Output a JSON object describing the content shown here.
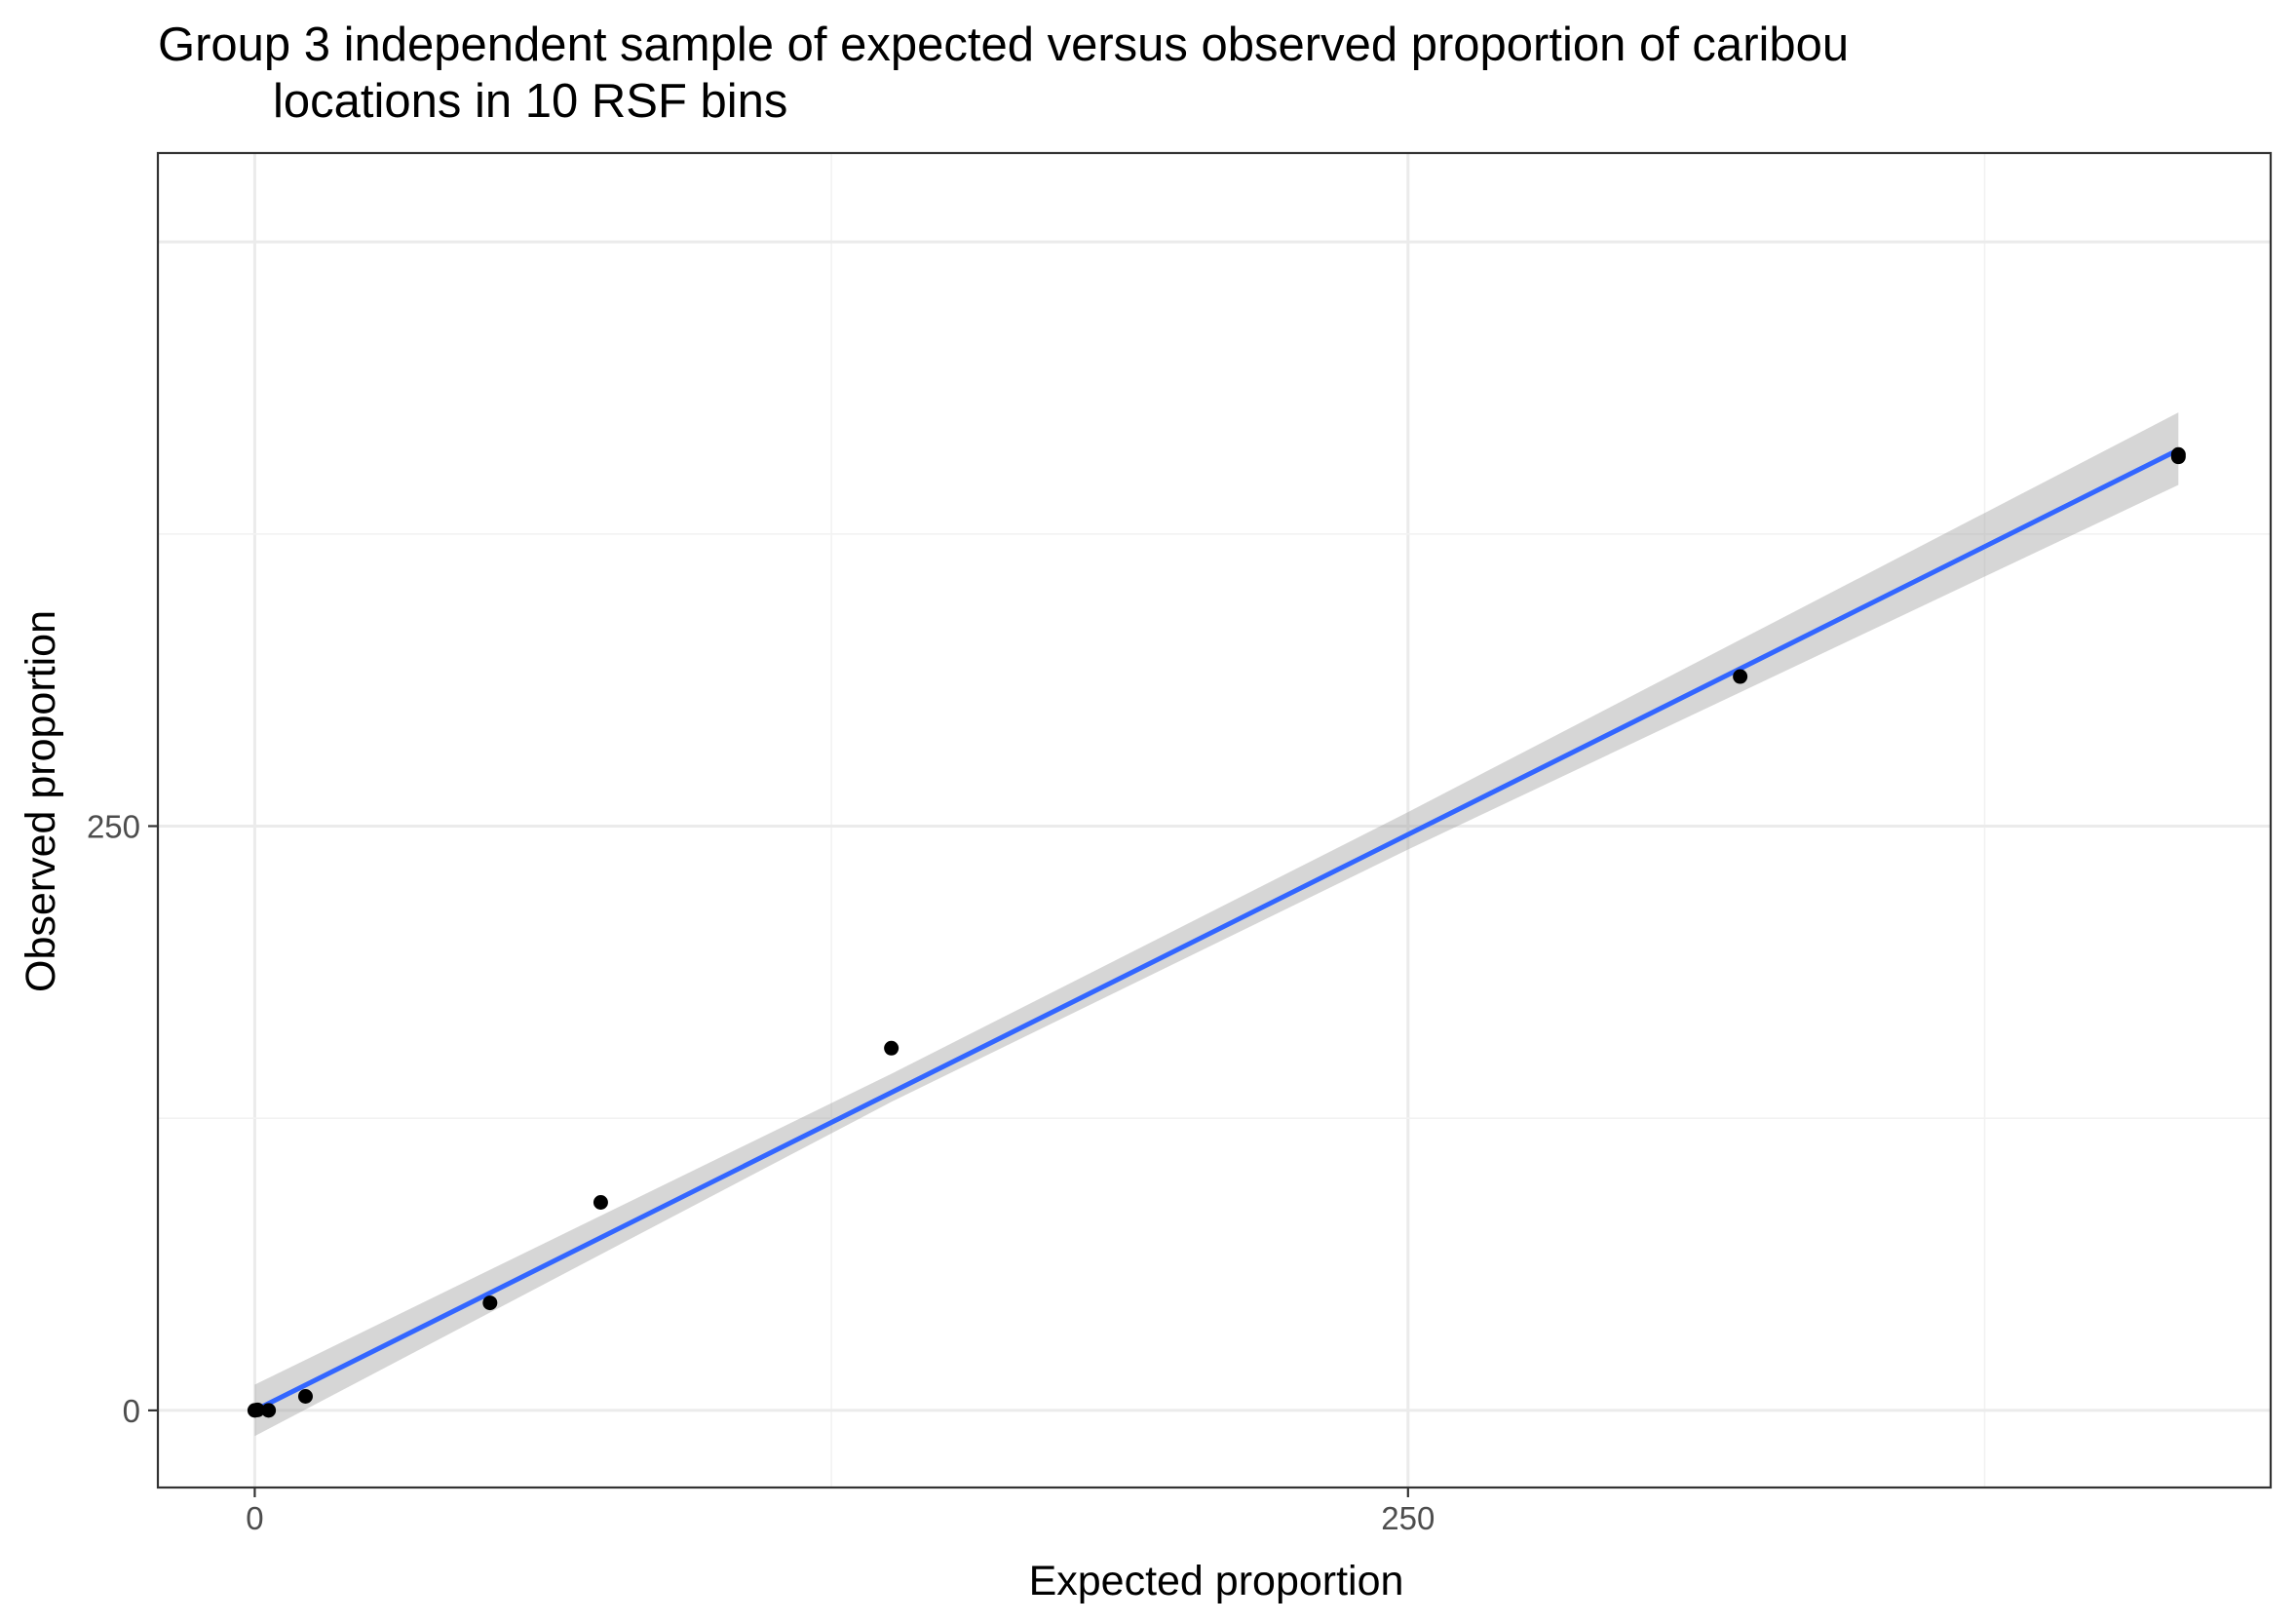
{
  "chart_data": {
    "type": "scatter",
    "title_line1": "Group 3 independent sample of expected versus observed proportion of caribou",
    "title_line2": "locations in 10 RSF bins",
    "xlabel": "Expected proportion",
    "ylabel": "Observed proportion",
    "xlim": [
      -21,
      437
    ],
    "ylim": [
      -33,
      538
    ],
    "x_ticks": [
      0,
      250
    ],
    "x_tick_labels": [
      "0",
      "250"
    ],
    "y_ticks": [
      0,
      250
    ],
    "y_tick_labels": [
      "0",
      "250"
    ],
    "grid": true,
    "points": [
      {
        "x": 0,
        "y": 0
      },
      {
        "x": 0.6,
        "y": 0.2
      },
      {
        "x": 3,
        "y": 0
      },
      {
        "x": 11,
        "y": 6
      },
      {
        "x": 51,
        "y": 46
      },
      {
        "x": 75,
        "y": 89
      },
      {
        "x": 138,
        "y": 155
      },
      {
        "x": 322,
        "y": 314
      },
      {
        "x": 417,
        "y": 409
      },
      {
        "x": 417,
        "y": 408
      }
    ],
    "fit_line": {
      "x": [
        0,
        417
      ],
      "y": [
        0,
        411
      ]
    },
    "ci_band": {
      "x": [
        0,
        138,
        250,
        417
      ],
      "lower": [
        -11,
        132,
        240,
        396
      ],
      "upper": [
        11,
        144,
        256,
        427
      ]
    },
    "colors": {
      "fit_line": "#3366ff",
      "ci_band": "#999999",
      "points": "#000000",
      "grid": "#ebebeb",
      "panel_border": "#333333"
    }
  }
}
